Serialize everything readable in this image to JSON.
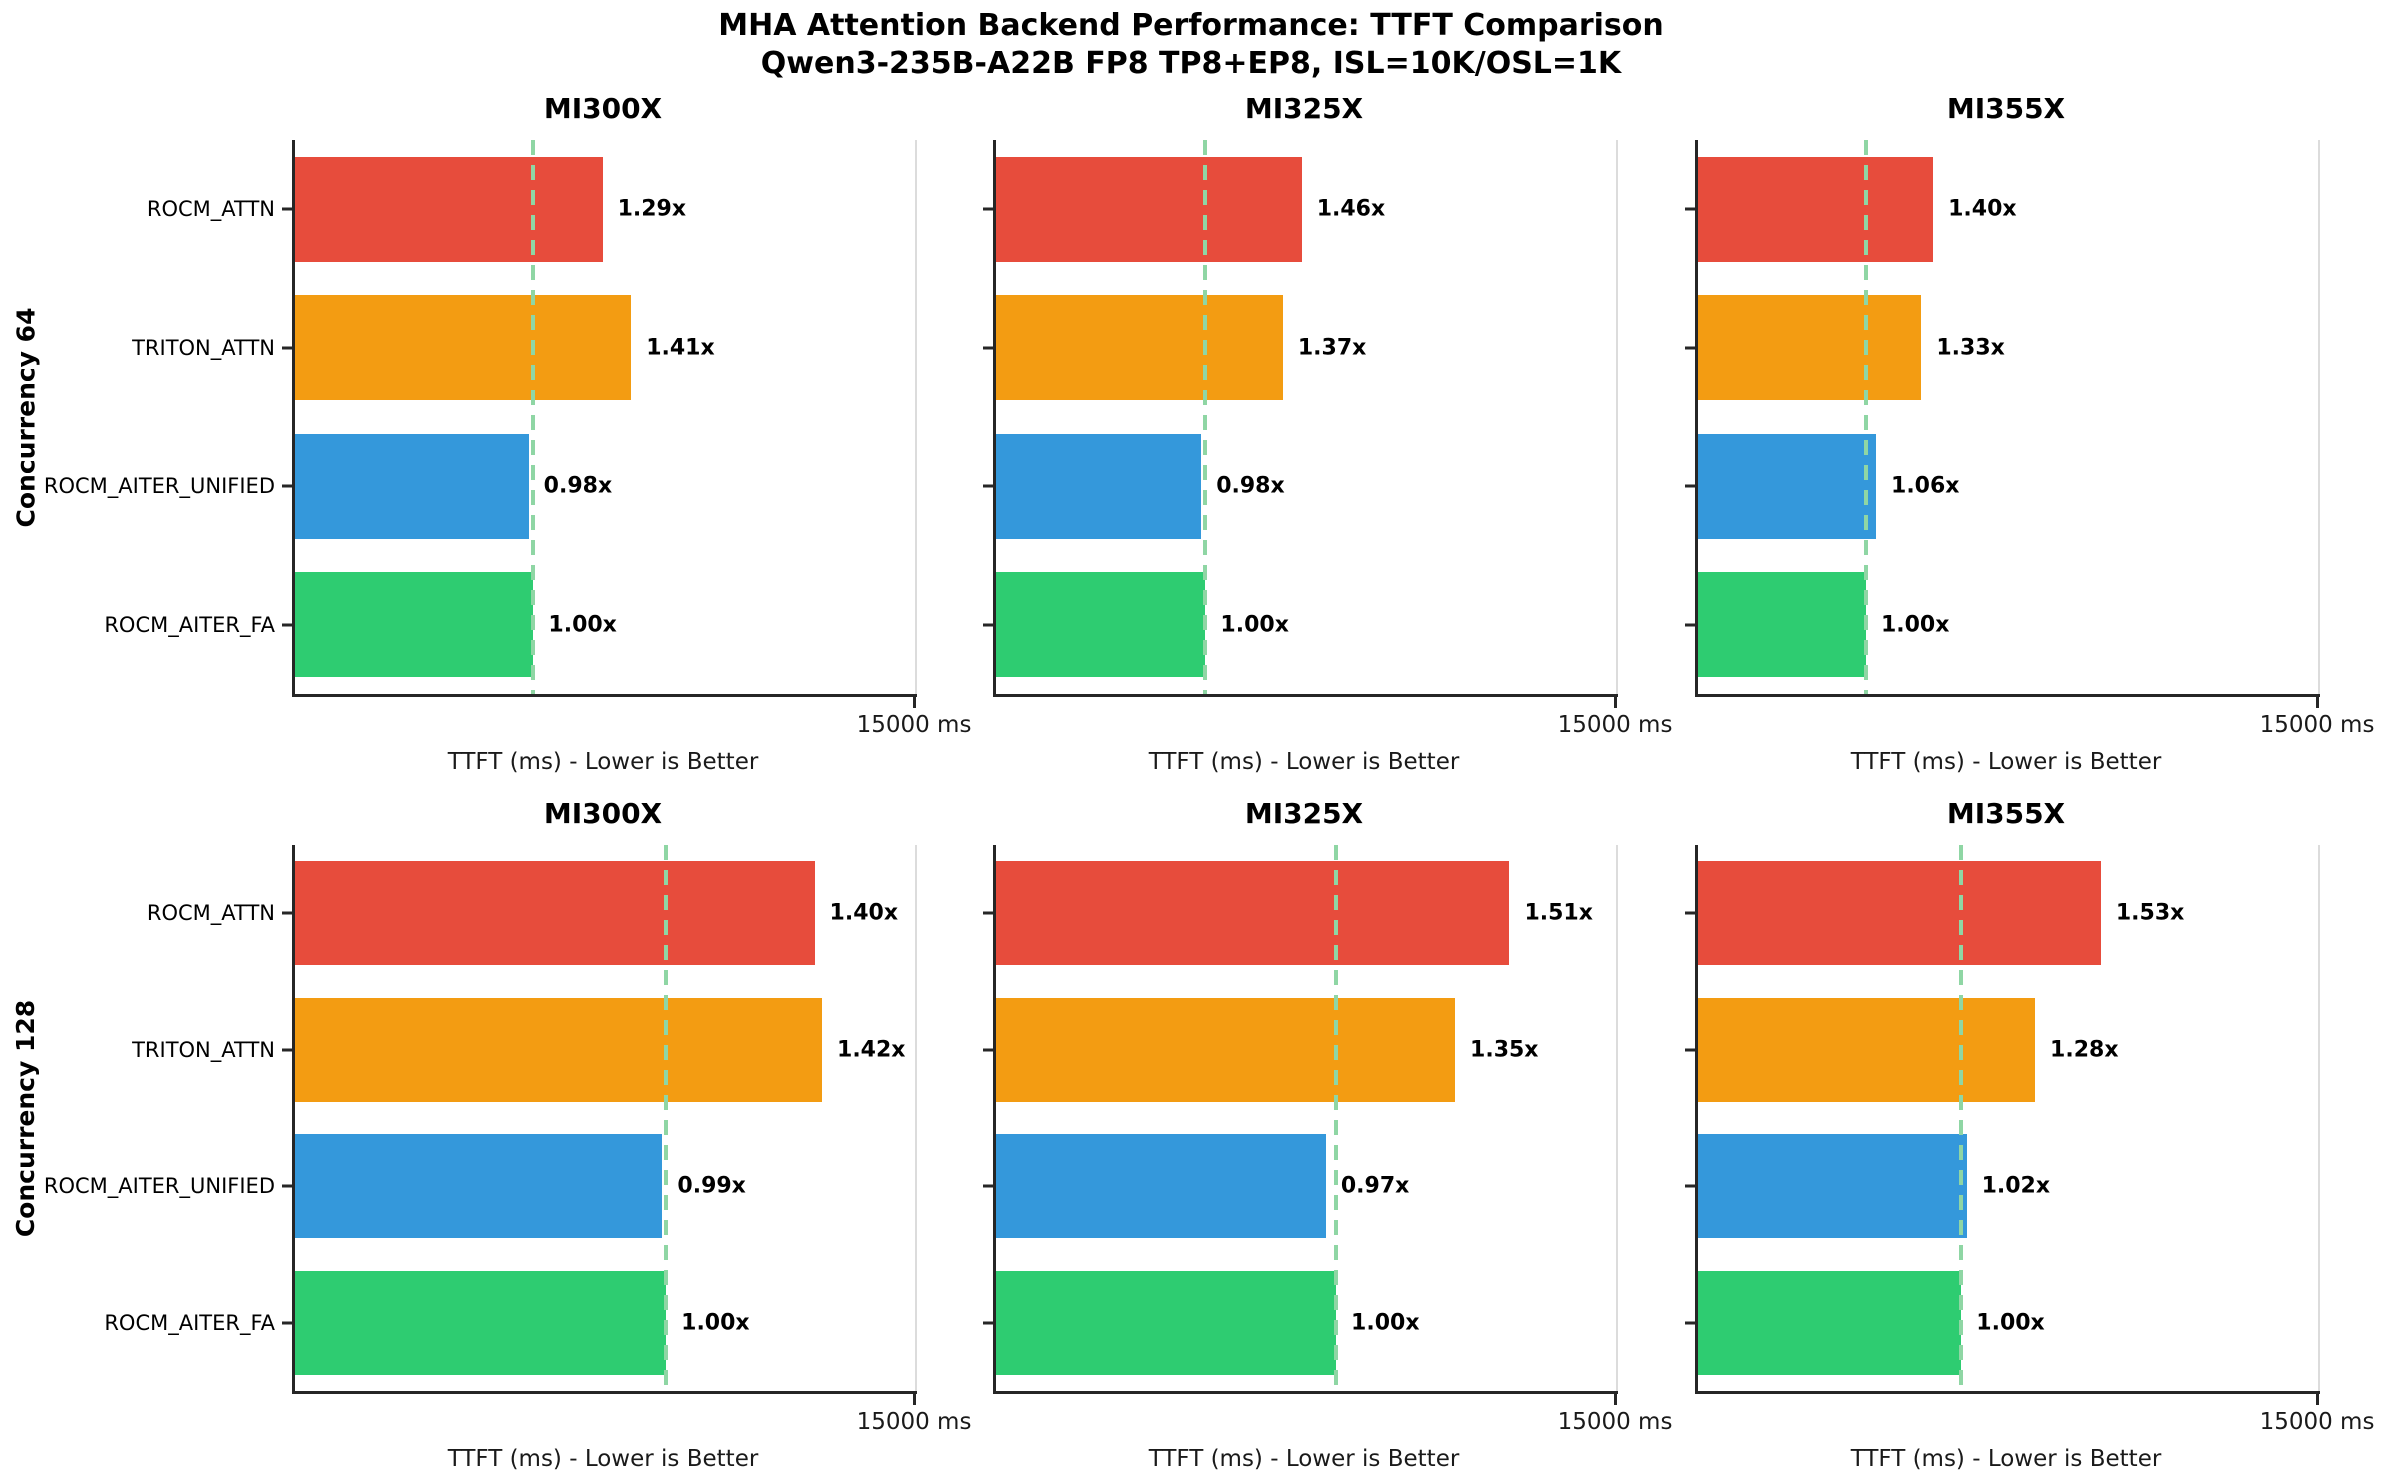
{
  "title": {
    "line1": "MHA Attention Backend Performance: TTFT Comparison",
    "line2": "Qwen3-235B-A22B FP8 TP8+EP8, ISL=10K/OSL=1K"
  },
  "chart_data": {
    "type": "bar",
    "orientation": "horizontal",
    "title": "MHA Attention Backend Performance: TTFT Comparison",
    "subtitle": "Qwen3-235B-A22B FP8 TP8+EP8, ISL=10K/OSL=1K",
    "categories": [
      "ROCM_ATTN",
      "TRITON_ATTN",
      "ROCM_AITER_UNIFIED",
      "ROCM_AITER_FA"
    ],
    "bar_colors": [
      "#e74c3c",
      "#f39c12",
      "#3498db",
      "#2ecc71"
    ],
    "baseline_line_color": "#8fd6a4",
    "baseline_note": "dashed line marks ROCM_AITER_FA baseline (1.00x)",
    "xlabel": "TTFT (ms) - Lower is Better",
    "xlim": [
      0,
      15000
    ],
    "x_tick_label": "15000 ms",
    "grid": "single light gridline at 15000 ms",
    "legend_position": "none",
    "rows": [
      {
        "row_label": "Concurrency 64",
        "panels": [
          {
            "gpu": "MI300X",
            "baseline_ttft_ms_est": 5750,
            "ratios": [
              1.29,
              1.41,
              0.98,
              1.0
            ],
            "ratio_labels": [
              "1.29x",
              "1.41x",
              "0.98x",
              "1.00x"
            ]
          },
          {
            "gpu": "MI325X",
            "baseline_ttft_ms_est": 5050,
            "ratios": [
              1.46,
              1.37,
              0.98,
              1.0
            ],
            "ratio_labels": [
              "1.46x",
              "1.37x",
              "0.98x",
              "1.00x"
            ]
          },
          {
            "gpu": "MI355X",
            "baseline_ttft_ms_est": 4050,
            "ratios": [
              1.4,
              1.33,
              1.06,
              1.0
            ],
            "ratio_labels": [
              "1.40x",
              "1.33x",
              "1.06x",
              "1.00x"
            ]
          }
        ]
      },
      {
        "row_label": "Concurrency 128",
        "panels": [
          {
            "gpu": "MI300X",
            "baseline_ttft_ms_est": 8950,
            "ratios": [
              1.4,
              1.42,
              0.99,
              1.0
            ],
            "ratio_labels": [
              "1.40x",
              "1.42x",
              "0.99x",
              "1.00x"
            ]
          },
          {
            "gpu": "MI325X",
            "baseline_ttft_ms_est": 8200,
            "ratios": [
              1.51,
              1.35,
              0.97,
              1.0
            ],
            "ratio_labels": [
              "1.51x",
              "1.35x",
              "0.97x",
              "1.00x"
            ]
          },
          {
            "gpu": "MI355X",
            "baseline_ttft_ms_est": 6350,
            "ratios": [
              1.53,
              1.28,
              1.02,
              1.0
            ],
            "ratio_labels": [
              "1.53x",
              "1.28x",
              "1.02x",
              "1.00x"
            ]
          }
        ]
      }
    ]
  }
}
